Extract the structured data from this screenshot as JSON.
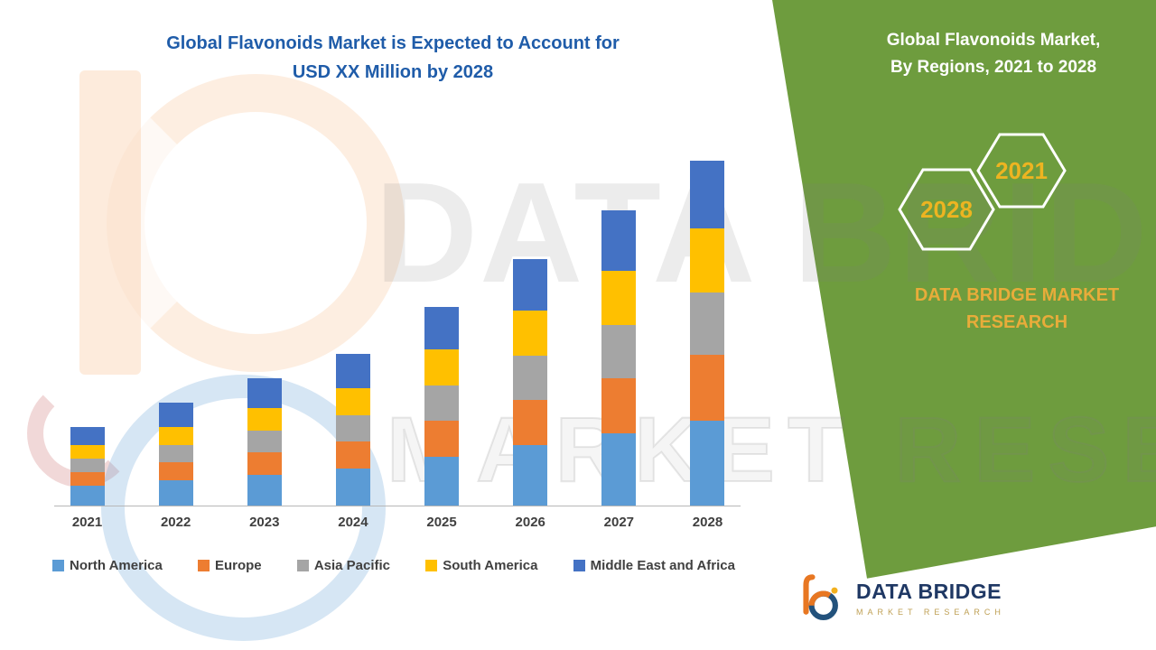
{
  "title": {
    "line1": "Global Flavonoids Market is Expected to Account for",
    "line2": "USD XX Million by 2028"
  },
  "side_panel": {
    "heading_line1": "Global Flavonoids Market,",
    "heading_line2": "By Regions, 2021 to 2028",
    "hex_left_year": "2028",
    "hex_right_year": "2021",
    "brand_line1": "DATA BRIDGE MARKET",
    "brand_line2": "RESEARCH",
    "panel_color": "#6E9C3E",
    "accent_gold": "#EDB421"
  },
  "watermark": {
    "line1": "DATA BRIDGE",
    "line2": "MARKET RESEARCH"
  },
  "logo": {
    "name": "DATA BRIDGE",
    "sub": "MARKET RESEARCH"
  },
  "chart_data": {
    "type": "bar",
    "stacked": true,
    "title": "Global Flavonoids Market is Expected to Account for USD XX Million by 2028",
    "xlabel": "",
    "ylabel": "",
    "ylim": [
      0,
      400
    ],
    "grid": false,
    "legend_position": "bottom",
    "categories": [
      "2021",
      "2022",
      "2023",
      "2024",
      "2025",
      "2026",
      "2027",
      "2028"
    ],
    "series": [
      {
        "name": "North America",
        "color": "#5B9BD5",
        "values": [
          22,
          28,
          34,
          41,
          54,
          67,
          80,
          94
        ]
      },
      {
        "name": "Europe",
        "color": "#ED7D31",
        "values": [
          15,
          20,
          25,
          30,
          40,
          50,
          61,
          73
        ]
      },
      {
        "name": "Asia Pacific",
        "color": "#A5A5A5",
        "values": [
          15,
          19,
          24,
          29,
          39,
          49,
          59,
          69
        ]
      },
      {
        "name": "South America",
        "color": "#FFC000",
        "values": [
          15,
          20,
          25,
          30,
          40,
          50,
          60,
          71
        ]
      },
      {
        "name": "Middle East and Africa",
        "color": "#4472C4",
        "values": [
          20,
          27,
          33,
          38,
          47,
          57,
          67,
          75
        ]
      }
    ]
  }
}
